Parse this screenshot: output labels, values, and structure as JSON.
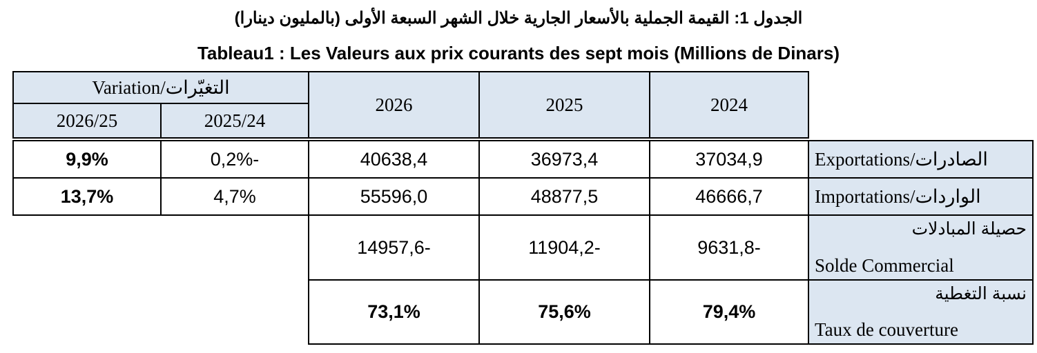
{
  "header": {
    "title_ar": "الجدول 1: القيمة الجملية بالأسعار الجارية خلال الشهر السبعة الأولى (بالمليون دينارا)",
    "title_fr": "Tableau1 : Les Valeurs aux prix courants des sept mois (Millions de Dinars)"
  },
  "table": {
    "variation_label": "Variation/التغيّرات",
    "variation_columns": [
      "2026/25",
      "2025/24"
    ],
    "years": [
      "2026",
      "2025",
      "2024"
    ],
    "rows": [
      {
        "label": "Exportations/الصادرات",
        "values": [
          "40638,4",
          "36973,4",
          "37034,9"
        ],
        "variations": [
          "9,9%",
          "0,2%-"
        ]
      },
      {
        "label": "Importations/الواردات",
        "values": [
          "55596,0",
          "48877,5",
          "46666,7"
        ],
        "variations": [
          "13,7%",
          "4,7%"
        ]
      },
      {
        "label_ar": "حصيلة المبادلات",
        "label_fr": "Solde Commercial",
        "values": [
          "14957,6-",
          "11904,2-",
          "9631,8-"
        ]
      },
      {
        "label_ar": "نسبة التغطية",
        "label_fr": "Taux de couverture",
        "values": [
          "73,1%",
          "75,6%",
          "79,4%"
        ]
      }
    ]
  }
}
